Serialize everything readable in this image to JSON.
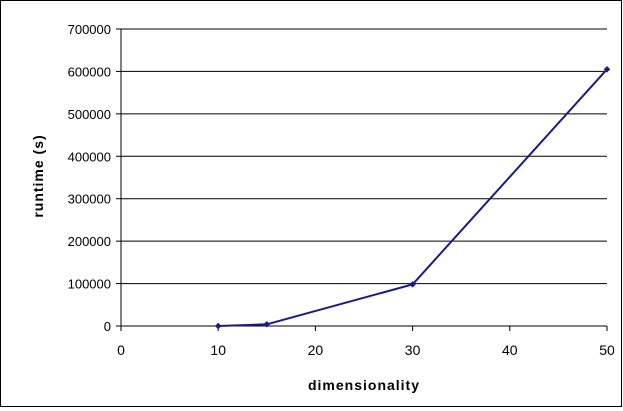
{
  "chart_data": {
    "type": "line",
    "title": "",
    "xlabel": "dimensionality",
    "ylabel": "runtime (s)",
    "x": [
      10,
      15,
      30,
      50
    ],
    "series": [
      {
        "values": [
          0,
          4000,
          98000,
          605000
        ],
        "color": "#1a1a8c"
      }
    ],
    "xlim": [
      0,
      50
    ],
    "ylim": [
      0,
      700000
    ],
    "x_ticks": [
      "0",
      "10",
      "20",
      "30",
      "40",
      "50"
    ],
    "y_ticks": [
      "0",
      "100000",
      "200000",
      "300000",
      "400000",
      "500000",
      "600000",
      "700000"
    ],
    "grid": "horizontal",
    "legend": "none",
    "colors": {
      "line": "#1a1a8c",
      "grid": "#000000",
      "frame": "#000000",
      "background": "#ffffff"
    }
  }
}
